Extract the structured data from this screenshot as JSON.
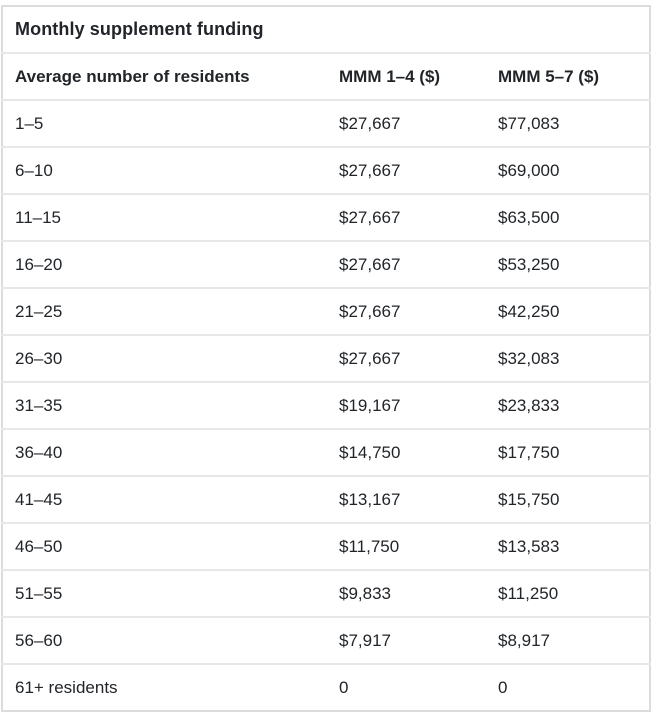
{
  "table": {
    "title": "Monthly supplement funding",
    "columns": [
      "Average number of residents",
      "MMM 1–4 ($)",
      "MMM 5–7 ($)"
    ],
    "rows": [
      [
        "1–5",
        "$27,667",
        "$77,083"
      ],
      [
        "6–10",
        "$27,667",
        "$69,000"
      ],
      [
        "11–15",
        "$27,667",
        "$63,500"
      ],
      [
        "16–20",
        "$27,667",
        "$53,250"
      ],
      [
        "21–25",
        "$27,667",
        "$42,250"
      ],
      [
        "26–30",
        "$27,667",
        "$32,083"
      ],
      [
        "31–35",
        "$19,167",
        "$23,833"
      ],
      [
        "36–40",
        "$14,750",
        "$17,750"
      ],
      [
        "41–45",
        "$13,167",
        "$15,750"
      ],
      [
        "46–50",
        "$11,750",
        "$13,583"
      ],
      [
        "51–55",
        "$9,833",
        "$11,250"
      ],
      [
        "56–60",
        "$7,917",
        "$8,917"
      ],
      [
        "61+ residents",
        "0",
        "0"
      ]
    ],
    "colors": {
      "text": "#212529",
      "border_outer": "#dcdcdc",
      "border_row": "#e7e7e7",
      "background": "#ffffff"
    }
  }
}
